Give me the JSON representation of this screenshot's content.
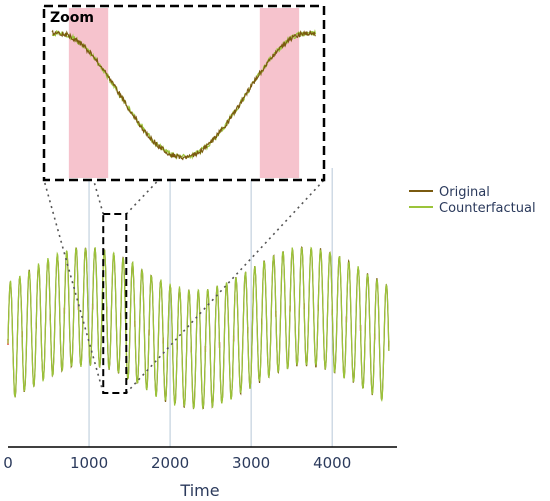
{
  "chart_data": {
    "type": "line",
    "title": "",
    "xlabel": "Time",
    "ylabel": "",
    "xlim": [
      0,
      4800
    ],
    "xticks": [
      0,
      1000,
      2000,
      3000,
      4000
    ],
    "grid": "vertical lines at x ticks",
    "legend_position": "right",
    "series": [
      {
        "name": "Original",
        "color": "#7a5a10"
      },
      {
        "name": "Counterfactual",
        "color": "#9bc43a"
      }
    ],
    "signal": {
      "description_values": "oscillation period ~116 samples; slow baseline wave; amplitude ~0.95",
      "period": 116,
      "baseline_period": 2700,
      "amplitude": 0.95,
      "baseline_amplitude": 0.35
    },
    "zoom": {
      "label": "Zoom",
      "x_range": [
        1200,
        1435
      ],
      "highlight_ranges": [
        [
          1215,
          1250
        ],
        [
          1385,
          1420
        ]
      ],
      "highlight_color": "#f5b9c4"
    }
  }
}
